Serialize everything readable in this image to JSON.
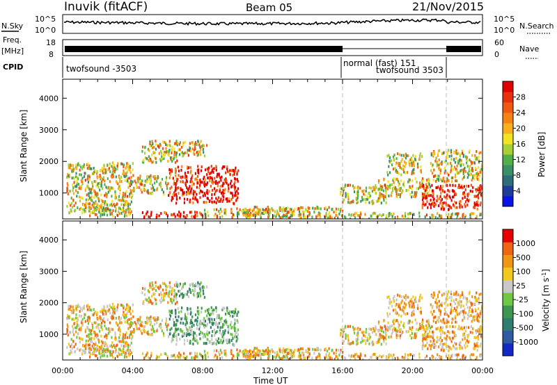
{
  "header": {
    "station": "Inuvik (fitACF)",
    "beam": "Beam 05",
    "date": "21/Nov/2015"
  },
  "nsky_panel": {
    "left_label": "N.Sky",
    "right_label": "N.Search",
    "tick_top": "10^5",
    "tick_bottom": "10^0",
    "right_tick_top": "10^5",
    "right_tick_bottom": "10^0"
  },
  "freq_panel": {
    "label_top": "Freq.",
    "label_unit": "[MHz]",
    "left_tick_top": "18",
    "left_tick_bottom": "8",
    "right_label": "Nave",
    "right_tick_top": "60",
    "right_tick_bottom": "0"
  },
  "cpid_panel": {
    "label": "CPID",
    "program_1": "twofsound -3503",
    "program_2": "normal (fast) 151",
    "program_3": "twofsound 3503"
  },
  "chart_data": [
    {
      "type": "heatmap",
      "title": "",
      "ylabel": "Slant Range [km]",
      "ylim": [
        180,
        4600
      ],
      "yticks": [
        "1000",
        "2000",
        "3000",
        "4000"
      ],
      "colorbar": {
        "label": "Power [dB]",
        "ticks": [
          "4",
          "8",
          "12",
          "16",
          "20",
          "24",
          "28"
        ],
        "colors": [
          "#0a14e6",
          "#1e3c9c",
          "#2e6e7a",
          "#3b9166",
          "#51b04a",
          "#a8cf34",
          "#f2e421",
          "#f7b01a",
          "#f58215",
          "#f05a10",
          "#e8300c",
          "#e00000"
        ]
      }
    },
    {
      "type": "heatmap",
      "title": "",
      "ylabel": "Slant Range [km]",
      "ylim": [
        180,
        4600
      ],
      "yticks": [
        "1000",
        "2000",
        "3000",
        "4000"
      ],
      "xlabel": "Time UT",
      "xticks": [
        "00:00",
        "04:00",
        "08:00",
        "12:00",
        "16:00",
        "20:00",
        "00:00"
      ],
      "colorbar": {
        "label": "Velocity [m s",
        "label_superscript": "-1",
        "ticks": [
          "1000",
          "500",
          "100",
          "25",
          "-25",
          "-100",
          "-500",
          "-1000"
        ],
        "colors": [
          "#1428c8",
          "#2d5aa0",
          "#2e7d6e",
          "#3c9650",
          "#6ec841",
          "#c8c8c8",
          "#f0c81e",
          "#f09614",
          "#f06414",
          "#e60000"
        ]
      }
    }
  ],
  "colors": {
    "axis": "#000000",
    "divider": "#bbbbbb"
  }
}
